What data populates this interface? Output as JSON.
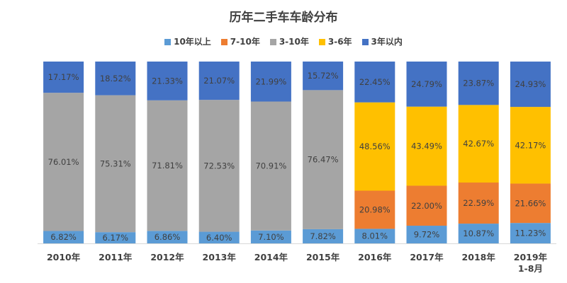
{
  "chart_data": {
    "type": "bar",
    "stacked": "percent",
    "title": "历年二手车车龄分布",
    "categories": [
      "2010年",
      "2011年",
      "2012年",
      "2013年",
      "2014年",
      "2015年",
      "2016年",
      "2017年",
      "2018年",
      "2019年 1-8月"
    ],
    "series": [
      {
        "name": "10年以上",
        "color": "#5B9BD5",
        "values": [
          6.82,
          6.17,
          6.86,
          6.4,
          7.1,
          7.82,
          8.01,
          9.72,
          10.87,
          11.23
        ]
      },
      {
        "name": "7-10年",
        "color": "#ED7D31",
        "values": [
          0,
          0,
          0,
          0,
          0,
          0,
          20.98,
          22.0,
          22.59,
          21.66
        ]
      },
      {
        "name": "3-10年",
        "color": "#A5A5A5",
        "values": [
          76.01,
          75.31,
          71.81,
          72.53,
          70.91,
          76.47,
          0,
          0,
          0,
          0
        ]
      },
      {
        "name": "3-6年",
        "color": "#FFC000",
        "values": [
          0,
          0,
          0,
          0,
          0,
          0,
          48.56,
          43.49,
          42.67,
          42.17
        ]
      },
      {
        "name": "3年以内",
        "color": "#4472C4",
        "values": [
          17.17,
          18.52,
          21.33,
          21.07,
          21.99,
          15.72,
          22.45,
          24.79,
          23.87,
          24.93
        ]
      }
    ],
    "data_labels": true,
    "data_label_format": "0.00%",
    "legend": "top",
    "grid": false,
    "ylim": [
      0,
      100
    ]
  }
}
